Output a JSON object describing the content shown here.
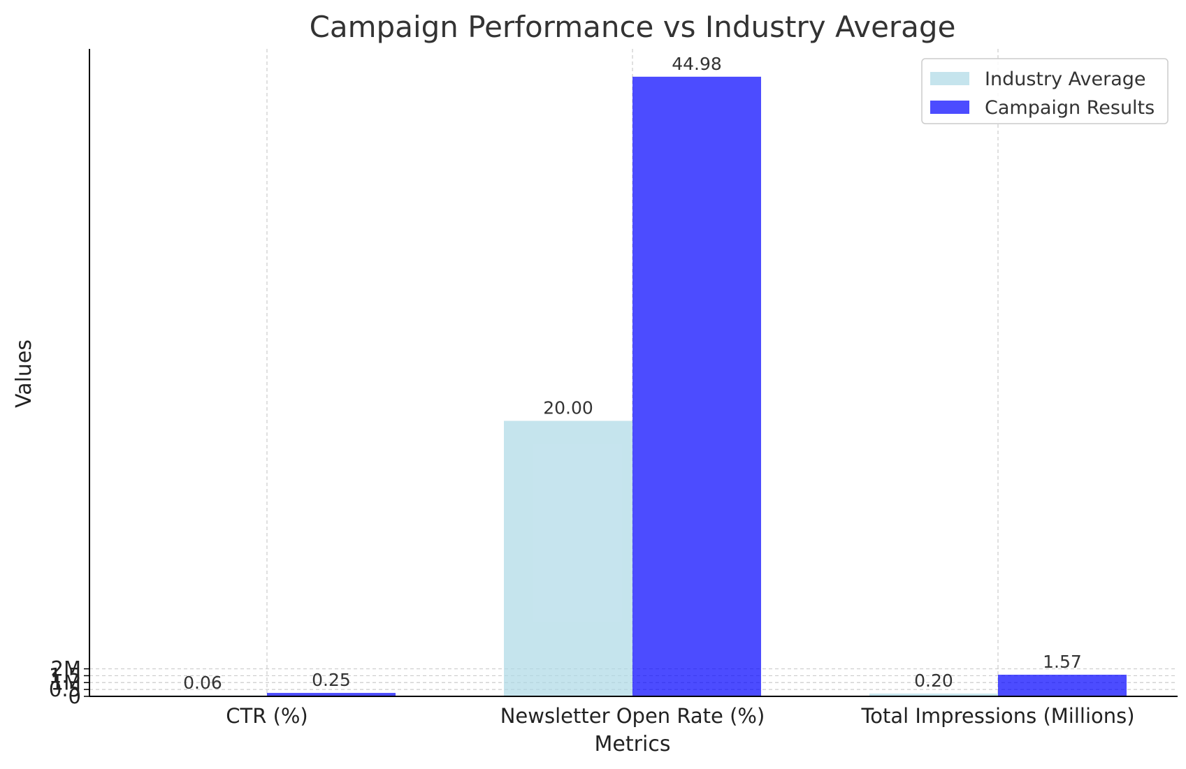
{
  "chart_data": {
    "type": "bar",
    "title": "Campaign Performance vs Industry Average",
    "xlabel": "Metrics",
    "ylabel": "Values",
    "categories": [
      "CTR (%)",
      "Newsletter Open Rate (%)",
      "Total Impressions (Millions)"
    ],
    "series": [
      {
        "name": "Industry Average",
        "values": [
          0.06,
          20.0,
          0.2
        ],
        "labels": [
          "0.06",
          "20.00",
          "0.20"
        ],
        "color": "#add8e6"
      },
      {
        "name": "Campaign Results",
        "values": [
          0.25,
          44.98,
          1.57
        ],
        "labels": [
          "0.25",
          "44.98",
          "1.57"
        ],
        "color": "#0000ff"
      }
    ],
    "ylim": [
      0,
      47
    ],
    "yticks": [
      {
        "value": 0,
        "label": "0"
      },
      {
        "value": 0.5,
        "label": "0.5"
      },
      {
        "value": 1,
        "label": "1M"
      },
      {
        "value": 1.5,
        "label": "1.5"
      },
      {
        "value": 2,
        "label": "2M"
      }
    ],
    "grid": true,
    "legend_position": "top-right"
  }
}
